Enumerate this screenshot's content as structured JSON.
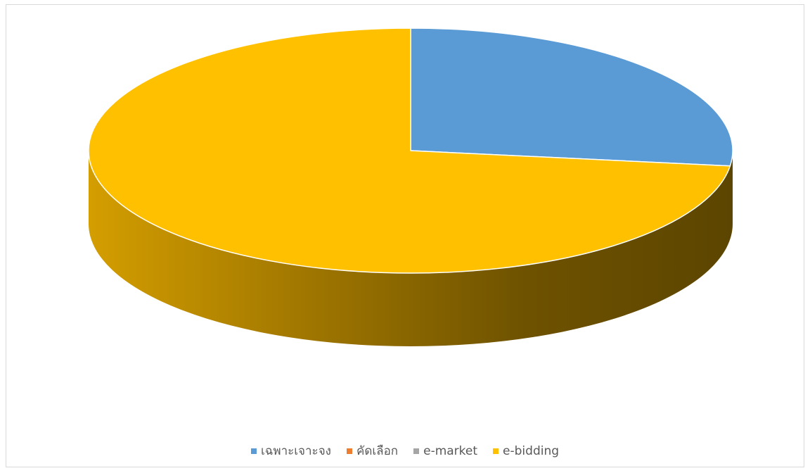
{
  "chart_data": {
    "type": "pie",
    "style": "3d",
    "categories": [
      "เฉพาะเจาะจง",
      "คัดเลือก",
      "e-market",
      "e-bidding"
    ],
    "values": [
      27,
      0,
      0,
      73
    ],
    "colors": [
      "#5b9bd5",
      "#ed7d31",
      "#a5a5a5",
      "#ffc000"
    ],
    "legend_position": "bottom",
    "title": ""
  },
  "legend": {
    "items": [
      {
        "label": "เฉพาะเจาะจง",
        "color": "#5b9bd5"
      },
      {
        "label": "คัดเลือก",
        "color": "#ed7d31"
      },
      {
        "label": "e-market",
        "color": "#a5a5a5"
      },
      {
        "label": "e-bidding",
        "color": "#ffc000"
      }
    ]
  }
}
